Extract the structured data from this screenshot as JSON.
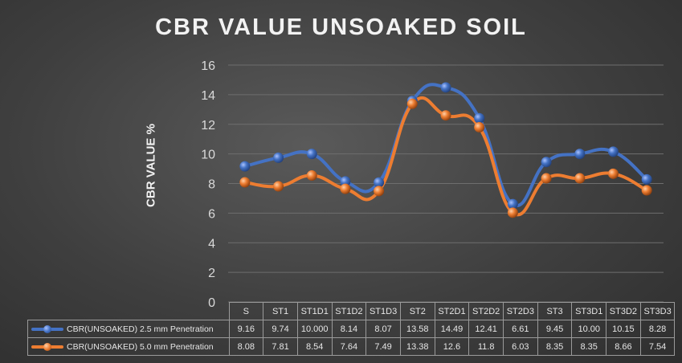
{
  "chart_data": {
    "type": "line",
    "title": "CBR VALUE UNSOAKED SOIL",
    "xlabel": "",
    "ylabel": "CBR VALUE %",
    "ylim": [
      0,
      16
    ],
    "yticks": [
      "0",
      "2",
      "4",
      "6",
      "8",
      "10",
      "12",
      "14",
      "16"
    ],
    "grid": true,
    "legend": "data-table-left",
    "categories": [
      "S",
      "ST1",
      "ST1D1",
      "ST1D2",
      "ST1D3",
      "ST2",
      "ST2D1",
      "ST2D2",
      "ST2D3",
      "ST3",
      "ST3D1",
      "ST3D2",
      "ST3D3"
    ],
    "series": [
      {
        "name": "CBR(UNSOAKED) 2.5 mm Penetration",
        "color": "#4472c4",
        "values": [
          9.16,
          9.74,
          10.0,
          8.14,
          8.07,
          13.58,
          14.49,
          12.41,
          6.61,
          9.45,
          10.0,
          10.15,
          8.28
        ],
        "labels": [
          "9.16",
          "9.74",
          "10.000",
          "8.14",
          "8.07",
          "13.58",
          "14.49",
          "12.41",
          "6.61",
          "9.45",
          "10.00",
          "10.15",
          "8.28"
        ]
      },
      {
        "name": "CBR(UNSOAKED) 5.0 mm Penetration",
        "color": "#ed7d31",
        "values": [
          8.08,
          7.81,
          8.54,
          7.64,
          7.49,
          13.38,
          12.6,
          11.8,
          6.03,
          8.35,
          8.35,
          8.66,
          7.54
        ],
        "labels": [
          "8.08",
          "7.81",
          "8.54",
          "7.64",
          "7.49",
          "13.38",
          "12.6",
          "11.8",
          "6.03",
          "8.35",
          "8.35",
          "8.66",
          "7.54"
        ]
      }
    ]
  }
}
